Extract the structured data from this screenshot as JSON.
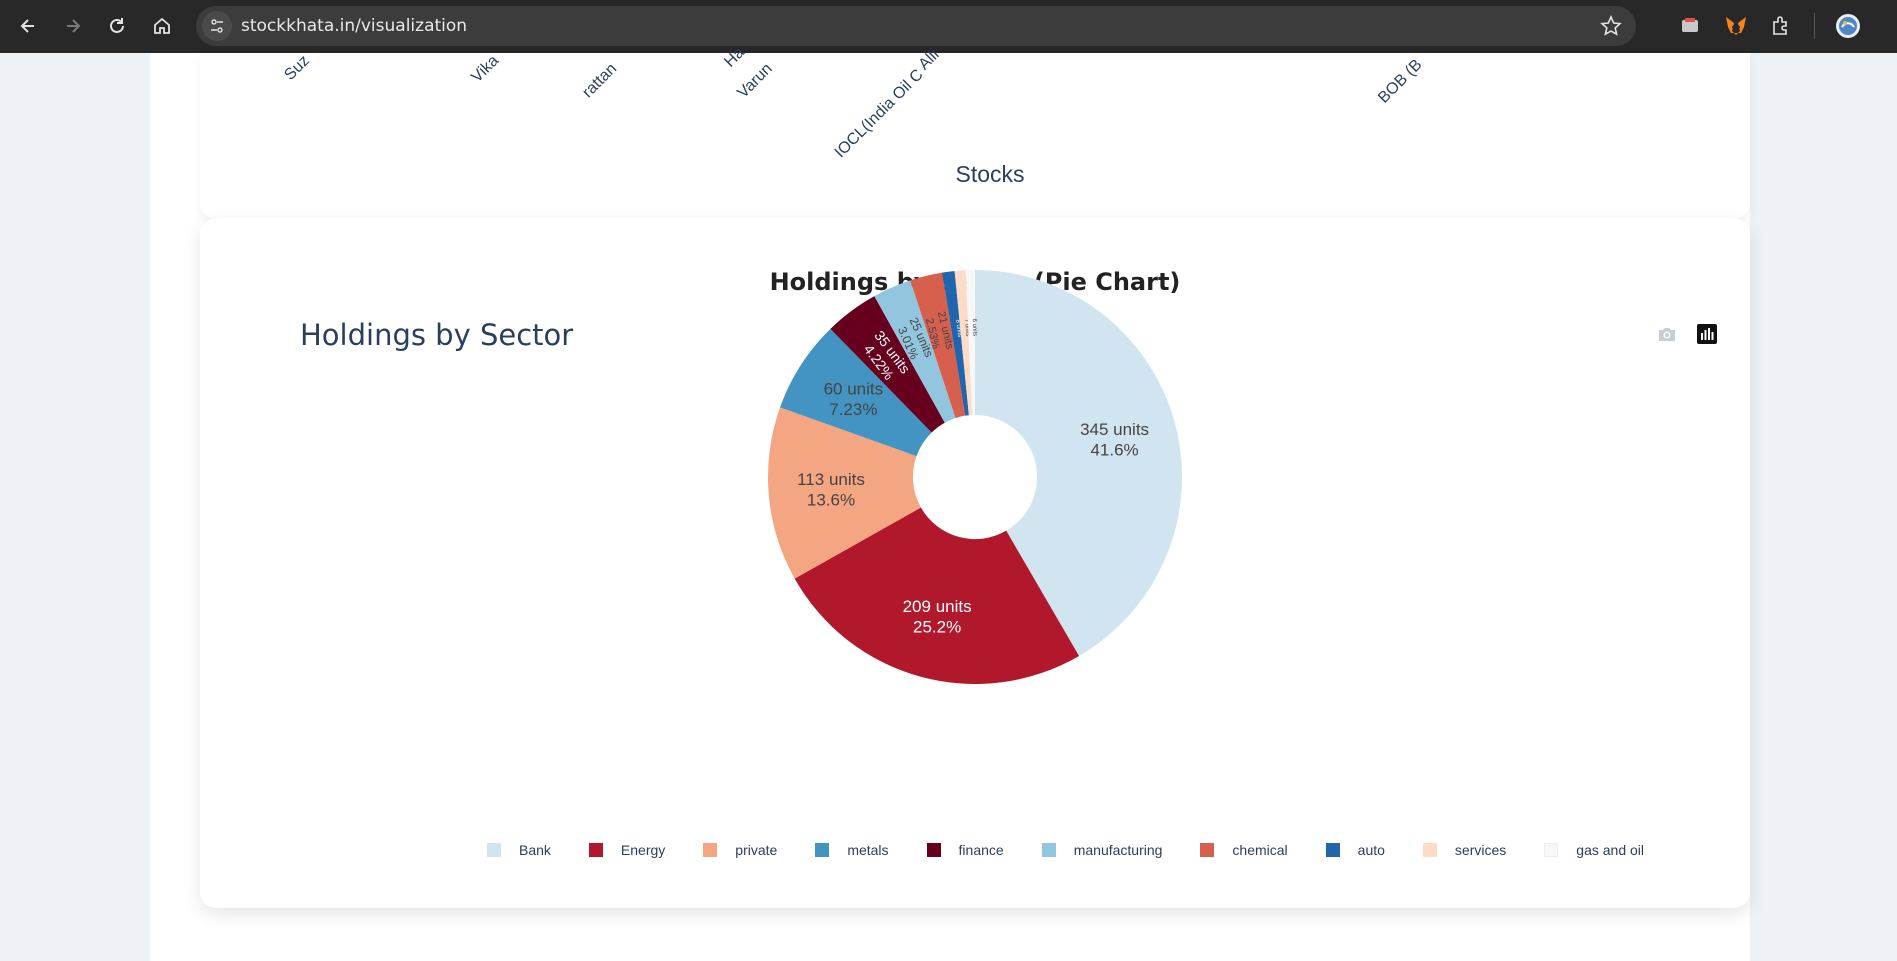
{
  "browser": {
    "url": "stockkhata.in/visualization",
    "icons": [
      "back-arrow-icon",
      "forward-arrow-icon",
      "reload-icon",
      "home-icon",
      "site-info-icon",
      "bookmark-star-icon",
      "cast-icon",
      "metamask-icon",
      "extensions-icon",
      "profile-avatar"
    ]
  },
  "bar_chart_fragment": {
    "tick_labels": [
      "Suz",
      "Vika",
      "rattan",
      "Ha",
      "Varun",
      "Alli",
      "IOCL(India Oil C",
      "BOB (B"
    ],
    "x_title": "Stocks"
  },
  "pie_section": {
    "heading": "Holdings by Sector (Pie Chart)",
    "modebar_icons": [
      "camera-icon",
      "plotly-logo-icon"
    ]
  },
  "chart_data": {
    "type": "pie",
    "title": "Holdings by Sector",
    "hole": 0.3,
    "label_suffix": "units",
    "categories": [
      "Bank",
      "Energy",
      "private",
      "metals",
      "finance",
      "manufacturing",
      "chemical",
      "auto",
      "services",
      "gas and oil"
    ],
    "values": [
      345,
      209,
      113,
      60,
      35,
      25,
      21,
      8,
      7,
      6
    ],
    "percent_labels": [
      "41.6%",
      "25.2%",
      "13.6%",
      "7.23%",
      "4.22%",
      "3.01%",
      "2.53%",
      "",
      "",
      ""
    ],
    "colors": [
      "#d1e5f0",
      "#b2182b",
      "#f4a582",
      "#4393c3",
      "#67001f",
      "#92c5de",
      "#d6604d",
      "#2166ac",
      "#fddbc7",
      "#f7f7f7"
    ],
    "text_colors": [
      "#444444",
      "#ffffff",
      "#444444",
      "#444444",
      "#ffffff",
      "#444444",
      "#444444",
      "#ffffff",
      "#444444",
      "#444444"
    ],
    "legend_position": "bottom"
  }
}
